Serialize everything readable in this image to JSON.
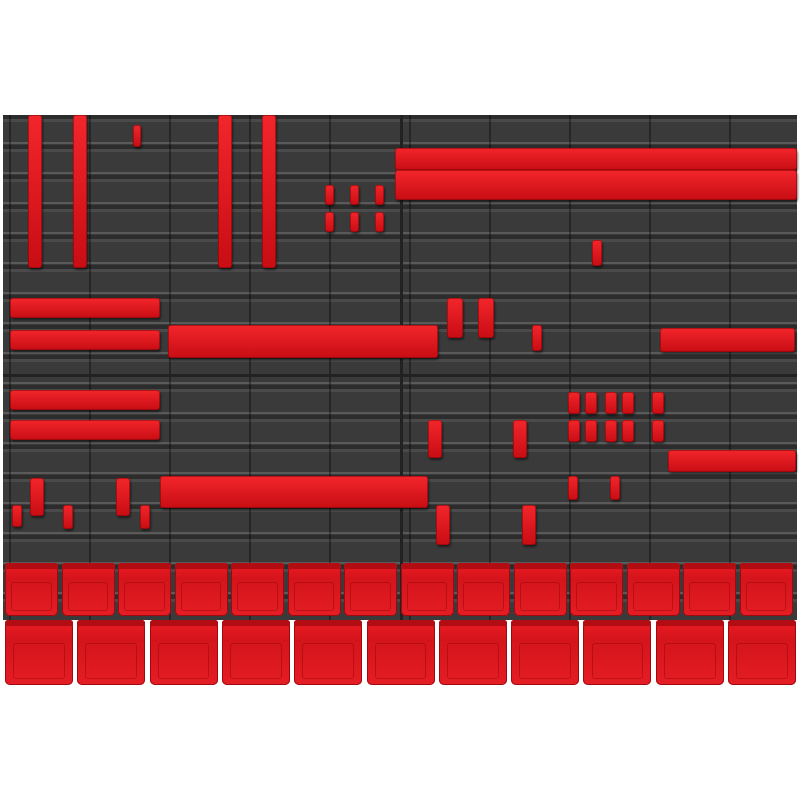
{
  "colors": {
    "board": "#3a3a3a",
    "accessory_red": "#e3131b",
    "background": "#ffffff"
  }
}
